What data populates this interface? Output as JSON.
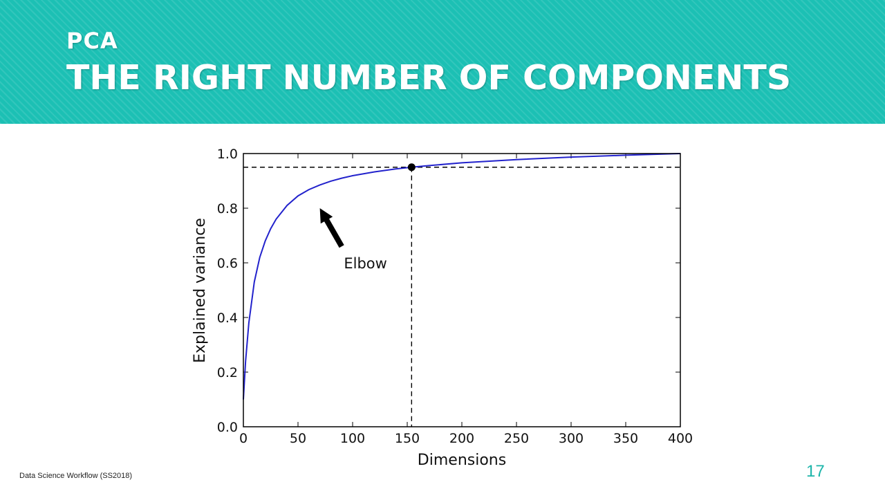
{
  "slide": {
    "subtitle": "PCA",
    "title": "THE RIGHT NUMBER OF COMPONENTS",
    "footer": "Data Science Workflow (SS2018)",
    "page_number": "17",
    "accent_color": "#1cc0b4"
  },
  "chart_data": {
    "type": "line",
    "title": "",
    "xlabel": "Dimensions",
    "ylabel": "Explained variance",
    "xlim": [
      0,
      400
    ],
    "ylim": [
      0.0,
      1.0
    ],
    "xticks": [
      0,
      50,
      100,
      150,
      200,
      250,
      300,
      350,
      400
    ],
    "yticks": [
      "0.0",
      "0.2",
      "0.4",
      "0.6",
      "0.8",
      "1.0"
    ],
    "grid": false,
    "series": [
      {
        "color": "#2222cc",
        "x": [
          0,
          2,
          5,
          10,
          15,
          20,
          25,
          30,
          40,
          50,
          60,
          70,
          80,
          90,
          100,
          120,
          140,
          154,
          170,
          200,
          250,
          300,
          350,
          400
        ],
        "y": [
          0.1,
          0.24,
          0.38,
          0.53,
          0.62,
          0.68,
          0.725,
          0.76,
          0.81,
          0.845,
          0.868,
          0.885,
          0.899,
          0.91,
          0.919,
          0.933,
          0.944,
          0.95,
          0.956,
          0.966,
          0.978,
          0.987,
          0.994,
          1.0
        ]
      }
    ],
    "threshold": {
      "x": 154,
      "y": 0.95,
      "style": "dashed"
    },
    "annotation": {
      "text": "Elbow",
      "arrow_tip": [
        70,
        0.8
      ],
      "arrow_tail": [
        90,
        0.66
      ],
      "label_at": [
        92,
        0.6
      ]
    }
  }
}
